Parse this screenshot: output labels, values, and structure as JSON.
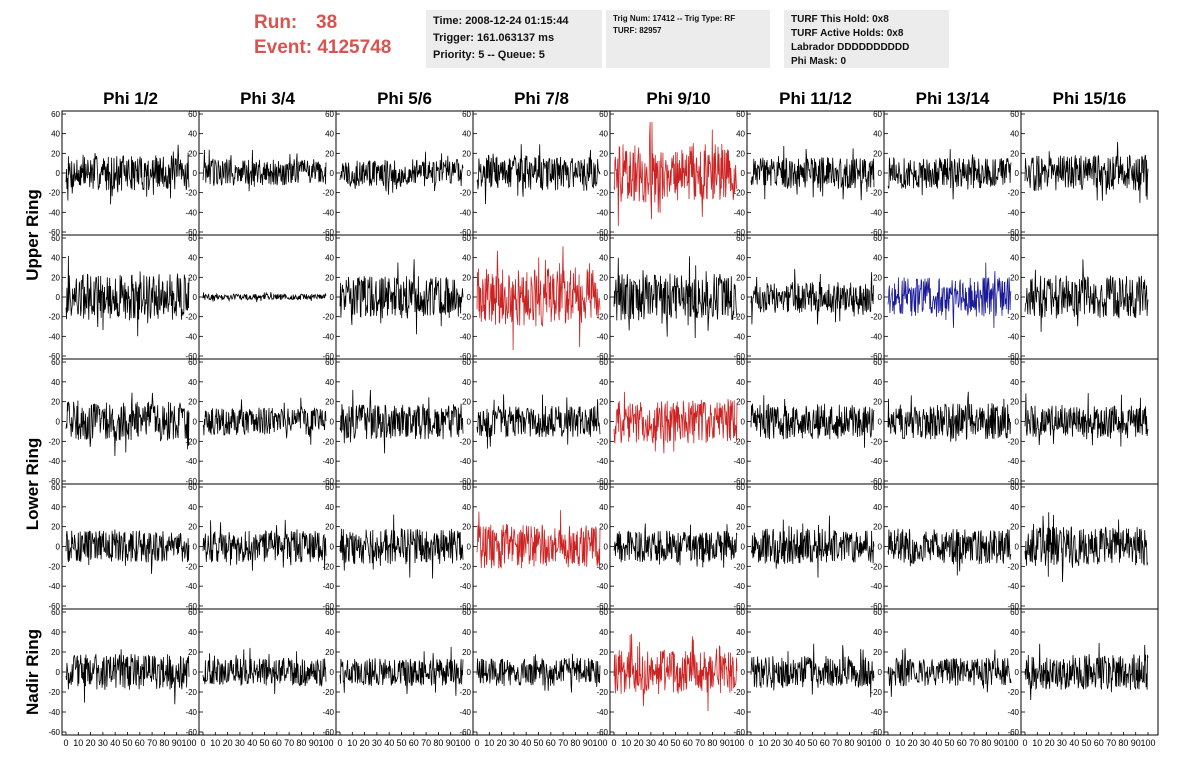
{
  "header": {
    "run_label": "Run:",
    "run_value": "38",
    "event_label": "Event:",
    "event_value": "4125748",
    "box1": [
      "Time: 2008-12-24 01:15:44",
      "Trigger: 161.063137 ms",
      "Priority: 5 -- Queue: 5"
    ],
    "box2": [
      "Trig Num: 17412 -- Trig Type: RF",
      "",
      "TURF: 82957"
    ],
    "box3": [
      "TURF This Hold: 0x8",
      "TURF Active Holds: 0x8",
      "Labrador DDDDDDDDDD",
      "Phi Mask: 0"
    ]
  },
  "colors": {
    "normal": "#000000",
    "triggered": "#cc2222",
    "highlight": "#1a1a99",
    "header_red": "#d9534f"
  },
  "chart_data": {
    "type": "line",
    "columns": [
      "Phi 1/2",
      "Phi 3/4",
      "Phi 5/6",
      "Phi 7/8",
      "Phi 9/10",
      "Phi 11/12",
      "Phi 13/14",
      "Phi 15/16"
    ],
    "rows": [
      "Upper Ring",
      "Lower Ring",
      "Nadir Ring"
    ],
    "ylim": [
      -60,
      60
    ],
    "yticks": [
      -60,
      -40,
      -20,
      0,
      20,
      40,
      60
    ],
    "xlim": [
      0,
      100
    ],
    "xtick_labels": [
      "0",
      "10",
      "20",
      "30",
      "40",
      "50",
      "60",
      "70",
      "80",
      "90",
      "100"
    ],
    "panels": [
      [
        {
          "amp": 18,
          "color": "normal"
        },
        {
          "amp": 14,
          "color": "normal"
        },
        {
          "amp": 14,
          "color": "normal"
        },
        {
          "amp": 18,
          "color": "normal"
        },
        {
          "amp": 30,
          "color": "triggered"
        },
        {
          "amp": 16,
          "color": "normal"
        },
        {
          "amp": 16,
          "color": "normal"
        },
        {
          "amp": 18,
          "color": "normal"
        }
      ],
      [
        {
          "amp": 24,
          "color": "normal"
        },
        {
          "amp": 3,
          "color": "normal"
        },
        {
          "amp": 22,
          "color": "normal"
        },
        {
          "amp": 30,
          "color": "triggered"
        },
        {
          "amp": 24,
          "color": "normal"
        },
        {
          "amp": 16,
          "color": "normal"
        },
        {
          "amp": 20,
          "color": "highlight"
        },
        {
          "amp": 22,
          "color": "normal"
        }
      ],
      [
        {
          "amp": 20,
          "color": "normal"
        },
        {
          "amp": 14,
          "color": "normal"
        },
        {
          "amp": 18,
          "color": "normal"
        },
        {
          "amp": 16,
          "color": "normal"
        },
        {
          "amp": 22,
          "color": "triggered"
        },
        {
          "amp": 18,
          "color": "normal"
        },
        {
          "amp": 18,
          "color": "normal"
        },
        {
          "amp": 16,
          "color": "normal"
        }
      ],
      [
        {
          "amp": 16,
          "color": "normal"
        },
        {
          "amp": 16,
          "color": "normal"
        },
        {
          "amp": 18,
          "color": "normal"
        },
        {
          "amp": 22,
          "color": "triggered"
        },
        {
          "amp": 16,
          "color": "normal"
        },
        {
          "amp": 18,
          "color": "normal"
        },
        {
          "amp": 18,
          "color": "normal"
        },
        {
          "amp": 20,
          "color": "normal"
        }
      ],
      [
        {
          "amp": 18,
          "color": "normal"
        },
        {
          "amp": 14,
          "color": "normal"
        },
        {
          "amp": 14,
          "color": "normal"
        },
        {
          "amp": 14,
          "color": "normal"
        },
        {
          "amp": 22,
          "color": "triggered"
        },
        {
          "amp": 16,
          "color": "normal"
        },
        {
          "amp": 14,
          "color": "normal"
        },
        {
          "amp": 18,
          "color": "normal"
        }
      ]
    ]
  }
}
